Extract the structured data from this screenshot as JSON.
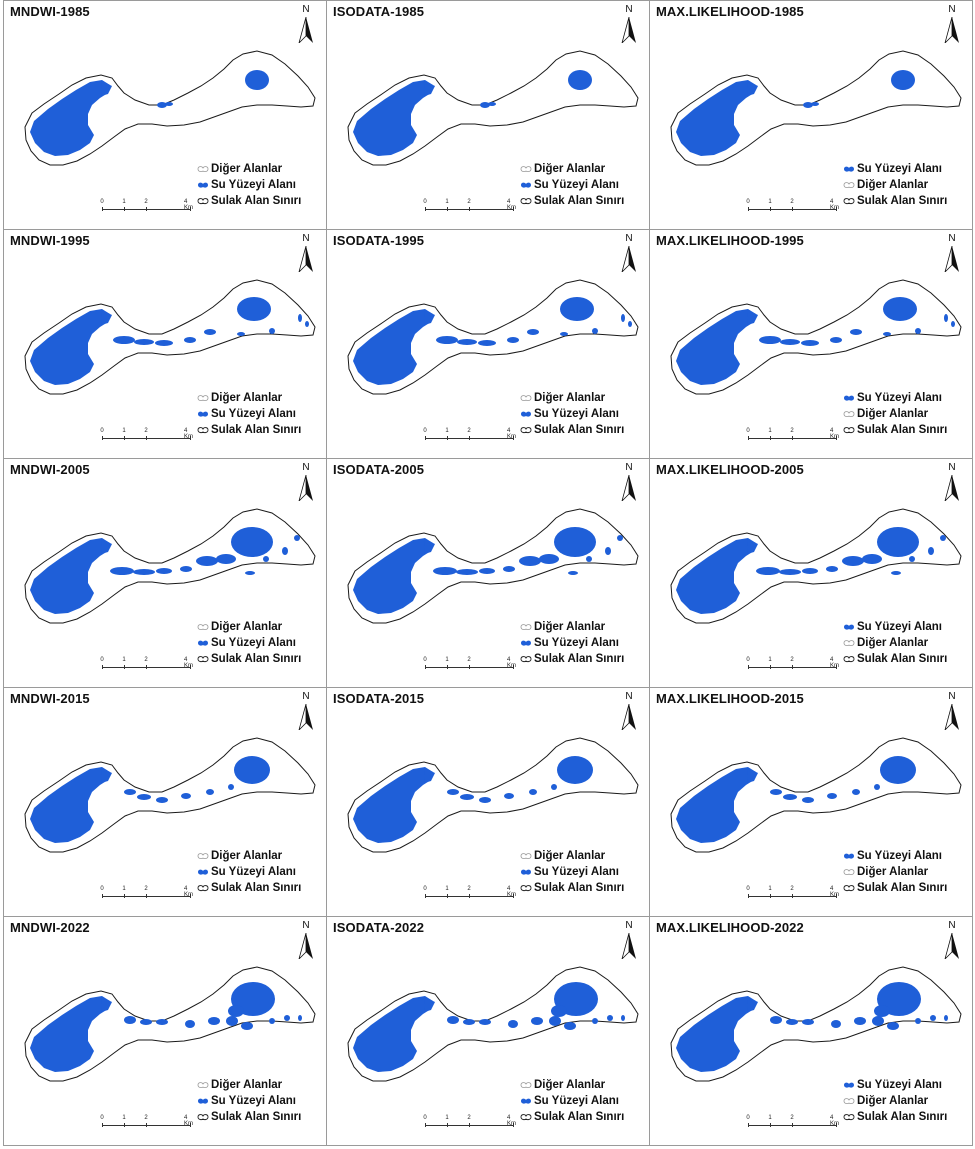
{
  "panels": [
    {
      "title": "MNDWI-1985",
      "year": "1985",
      "legend": [
        "Diğer Alanlar",
        "Su Yüzeyi Alanı",
        "Sulak Alan Sınırı"
      ],
      "legend_icons": [
        "other-area-icon",
        "water-surface-icon",
        "wetland-boundary-icon"
      ]
    },
    {
      "title": "ISODATA-1985",
      "year": "1985",
      "legend": [
        "Diğer Alanlar",
        "Su Yüzeyi Alanı",
        "Sulak Alan Sınırı"
      ],
      "legend_icons": [
        "other-area-icon",
        "water-surface-icon",
        "wetland-boundary-icon"
      ]
    },
    {
      "title": "MAX.LIKELIHOOD-1985",
      "year": "1985",
      "legend": [
        "Su Yüzeyi Alanı",
        "Diğer Alanlar",
        "Sulak Alan Sınırı"
      ],
      "legend_icons": [
        "water-surface-icon",
        "other-area-icon",
        "wetland-boundary-icon"
      ]
    },
    {
      "title": "MNDWI-1995",
      "year": "1995",
      "legend": [
        "Diğer Alanlar",
        "Su Yüzeyi Alanı",
        "Sulak Alan Sınırı"
      ],
      "legend_icons": [
        "other-area-icon",
        "water-surface-icon",
        "wetland-boundary-icon"
      ]
    },
    {
      "title": "ISODATA-1995",
      "year": "1995",
      "legend": [
        "Diğer Alanlar",
        "Su Yüzeyi Alanı",
        "Sulak Alan Sınırı"
      ],
      "legend_icons": [
        "other-area-icon",
        "water-surface-icon",
        "wetland-boundary-icon"
      ]
    },
    {
      "title": "MAX.LIKELIHOOD-1995",
      "year": "1995",
      "legend": [
        "Su Yüzeyi Alanı",
        "Diğer Alanlar",
        "Sulak Alan Sınırı"
      ],
      "legend_icons": [
        "water-surface-icon",
        "other-area-icon",
        "wetland-boundary-icon"
      ]
    },
    {
      "title": "MNDWI-2005",
      "year": "2005",
      "legend": [
        "Diğer Alanlar",
        "Su Yüzeyi Alanı",
        "Sulak Alan Sınırı"
      ],
      "legend_icons": [
        "other-area-icon",
        "water-surface-icon",
        "wetland-boundary-icon"
      ]
    },
    {
      "title": "ISODATA-2005",
      "year": "2005",
      "legend": [
        "Diğer Alanlar",
        "Su Yüzeyi Alanı",
        "Sulak Alan Sınırı"
      ],
      "legend_icons": [
        "other-area-icon",
        "water-surface-icon",
        "wetland-boundary-icon"
      ]
    },
    {
      "title": "MAX.LIKELIHOOD-2005",
      "year": "2005",
      "legend": [
        "Su Yüzeyi Alanı",
        "Diğer Alanlar",
        "Sulak Alan Sınırı"
      ],
      "legend_icons": [
        "water-surface-icon",
        "other-area-icon",
        "wetland-boundary-icon"
      ]
    },
    {
      "title": "MNDWI-2015",
      "year": "2015",
      "legend": [
        "Diğer Alanlar",
        "Su Yüzeyi Alanı",
        "Sulak Alan Sınırı"
      ],
      "legend_icons": [
        "other-area-icon",
        "water-surface-icon",
        "wetland-boundary-icon"
      ]
    },
    {
      "title": "ISODATA-2015",
      "year": "2015",
      "legend": [
        "Diğer Alanlar",
        "Su Yüzeyi Alanı",
        "Sulak Alan Sınırı"
      ],
      "legend_icons": [
        "other-area-icon",
        "water-surface-icon",
        "wetland-boundary-icon"
      ]
    },
    {
      "title": "MAX.LIKELIHOOD-2015",
      "year": "2015",
      "legend": [
        "Su Yüzeyi Alanı",
        "Diğer Alanlar",
        "Sulak Alan Sınırı"
      ],
      "legend_icons": [
        "water-surface-icon",
        "other-area-icon",
        "wetland-boundary-icon"
      ]
    },
    {
      "title": "MNDWI-2022",
      "year": "2022",
      "legend": [
        "Diğer Alanlar",
        "Su Yüzeyi Alanı",
        "Sulak Alan Sınırı"
      ],
      "legend_icons": [
        "other-area-icon",
        "water-surface-icon",
        "wetland-boundary-icon"
      ]
    },
    {
      "title": "ISODATA-2022",
      "year": "2022",
      "legend": [
        "Diğer Alanlar",
        "Su Yüzeyi Alanı",
        "Sulak Alan Sınırı"
      ],
      "legend_icons": [
        "other-area-icon",
        "water-surface-icon",
        "wetland-boundary-icon"
      ]
    },
    {
      "title": "MAX.LIKELIHOOD-2022",
      "year": "2022",
      "legend": [
        "Su Yüzeyi Alanı",
        "Diğer Alanlar",
        "Sulak Alan Sınırı"
      ],
      "legend_icons": [
        "water-surface-icon",
        "other-area-icon",
        "wetland-boundary-icon"
      ]
    }
  ],
  "north_arrow_label": "N",
  "scale_bar_ticks": [
    "0",
    "1",
    "2",
    "4 Km"
  ],
  "scale_bar_values_km": [
    0,
    1,
    2,
    4
  ],
  "colors": {
    "water": "#1f5fd8",
    "other": "#ffffff",
    "boundary": "#1a1a1a",
    "panel_border": "#9a9a9a"
  },
  "icons": {
    "north": "north-arrow-icon",
    "water": "water-surface-icon",
    "other": "other-area-icon",
    "boundary": "wetland-boundary-icon"
  }
}
